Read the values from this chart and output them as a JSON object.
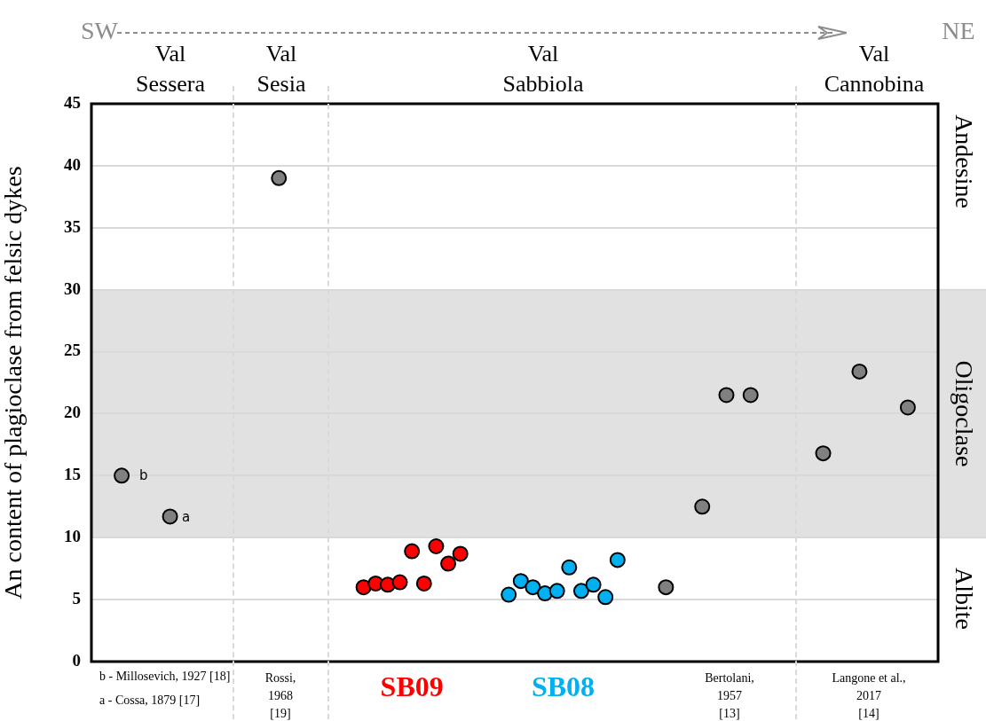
{
  "chart_data": {
    "type": "scatter",
    "ylabel": "An content of plagioclase from felsic dykes",
    "categories": [
      null,
      null,
      null,
      null,
      null,
      null,
      null,
      null,
      null,
      null,
      null,
      null,
      null,
      null,
      null,
      null,
      null,
      null,
      null,
      null,
      null,
      null,
      null,
      null,
      null,
      null,
      null,
      null,
      null,
      null,
      null,
      null,
      null,
      null,
      null,
      null,
      null,
      null,
      null,
      null,
      null,
      null,
      null,
      null,
      null,
      null,
      null,
      null,
      null,
      null,
      null,
      null,
      null,
      null,
      null,
      null,
      null,
      null,
      null,
      null,
      null,
      null,
      null,
      null,
      null,
      null,
      null,
      null,
      null,
      null
    ],
    "ylim": [
      0,
      45
    ],
    "yticks": [
      0,
      5,
      10,
      15,
      20,
      25,
      30,
      35,
      40,
      45
    ],
    "tick_labels": "y",
    "grid": "y",
    "legend": false,
    "marker": "circle",
    "series": [
      {
        "color": "#808080",
        "values": [
          null,
          null,
          15,
          null,
          null,
          null,
          11.7,
          null,
          null,
          null,
          null,
          null,
          null,
          null,
          null,
          39,
          null,
          null,
          null,
          null,
          null,
          null,
          null,
          null,
          null,
          null,
          null,
          null,
          null,
          null,
          null,
          null,
          null,
          null,
          null,
          null,
          null,
          null,
          null,
          null,
          null,
          null,
          null,
          null,
          null,
          null,
          null,
          6,
          null,
          null,
          12.5,
          null,
          21.5,
          null,
          21.5,
          null,
          null,
          null,
          null,
          null,
          16.8,
          null,
          null,
          23.4,
          null,
          null,
          null,
          20.5,
          null,
          null
        ]
      },
      {
        "name": "SB09",
        "color": "#ff0000",
        "values": [
          null,
          null,
          null,
          null,
          null,
          null,
          null,
          null,
          null,
          null,
          null,
          null,
          null,
          null,
          null,
          null,
          null,
          null,
          null,
          null,
          null,
          null,
          6,
          6.3,
          6.2,
          6.4,
          8.9,
          6.3,
          9.3,
          7.9,
          8.7,
          null,
          null,
          null,
          null,
          null,
          null,
          null,
          null,
          null,
          null,
          null,
          null,
          null,
          null,
          null,
          null,
          null,
          null,
          null,
          null,
          null,
          null,
          null,
          null,
          null,
          null,
          null,
          null,
          null,
          null,
          null,
          null,
          null,
          null,
          null,
          null,
          null,
          null,
          null
        ]
      },
      {
        "name": "SB08",
        "color": "#00b0f0",
        "values": [
          null,
          null,
          null,
          null,
          null,
          null,
          null,
          null,
          null,
          null,
          null,
          null,
          null,
          null,
          null,
          null,
          null,
          null,
          null,
          null,
          null,
          null,
          null,
          null,
          null,
          null,
          null,
          null,
          null,
          null,
          null,
          null,
          null,
          null,
          5.4,
          6.5,
          6,
          5.5,
          5.7,
          7.6,
          5.7,
          6.2,
          5.2,
          8.2,
          null,
          null,
          null,
          null,
          null,
          null,
          null,
          null,
          null,
          null,
          null,
          null,
          null,
          null,
          null,
          null,
          null,
          null,
          null,
          null,
          null,
          null,
          null,
          null,
          null,
          null
        ]
      }
    ],
    "bands": [
      {
        "axis": "y",
        "from": 10,
        "to": 30,
        "label": "Oligoclase",
        "color": "#e1e1e1"
      }
    ],
    "annotations": [
      "SW",
      "NE",
      "Val\nSessera",
      "Val\nSesia",
      "Val\nSabbiola",
      "Val\nCannobina",
      "b - Millosevich, 1927 [18]",
      "a - Cossa, 1879 [17]",
      "Rossi,\n1968\n[19]",
      "Bertolani,\n1957\n[13]",
      "Langone et al.,\n2017\n[14]",
      "b",
      "a",
      "Andesine",
      "Albite"
    ]
  }
}
